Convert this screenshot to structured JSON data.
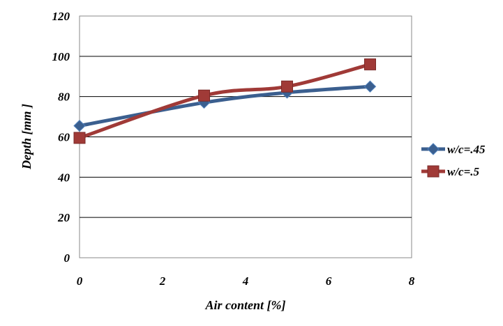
{
  "chart_data": {
    "type": "line",
    "xlabel": "Air content [%]",
    "ylabel": "Depth [mm ]",
    "xlim": [
      0,
      8
    ],
    "ylim": [
      0,
      120
    ],
    "x_ticks": [
      "0",
      "2",
      "4",
      "6",
      "8"
    ],
    "y_ticks": [
      "0",
      "20",
      "40",
      "60",
      "80",
      "100",
      "120"
    ],
    "grid": "horizontal",
    "legend_position": "right",
    "series": [
      {
        "name": "w/c=.45",
        "color": "#3b5f8f",
        "marker": "diamond",
        "x": [
          0,
          3,
          5,
          7
        ],
        "y": [
          65.5,
          77,
          82,
          85
        ]
      },
      {
        "name": "w/c=.5",
        "color": "#a03a37",
        "marker": "square",
        "x": [
          0,
          3,
          5,
          7
        ],
        "y": [
          59.5,
          80.5,
          85,
          96
        ]
      }
    ]
  }
}
